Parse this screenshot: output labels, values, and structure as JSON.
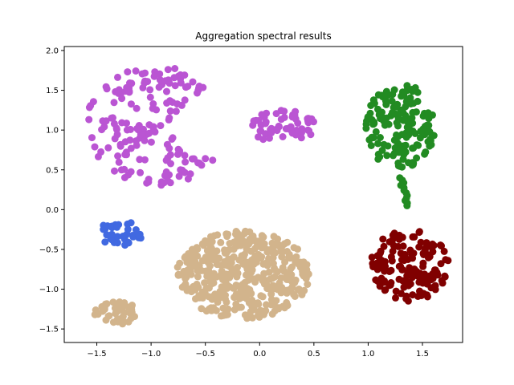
{
  "chart_data": {
    "type": "scatter",
    "title": "Aggregation spectral results",
    "xlabel": "",
    "ylabel": "",
    "xlim": [
      -1.8,
      1.87
    ],
    "ylim": [
      -1.67,
      2.05
    ],
    "xticks": [
      -1.5,
      -1.0,
      -0.5,
      0.0,
      0.5,
      1.0,
      1.5
    ],
    "yticks": [
      -1.5,
      -1.0,
      -0.5,
      0.0,
      0.5,
      1.0,
      1.5,
      2.0
    ],
    "xtick_labels": [
      "−1.5",
      "−1.0",
      "−0.5",
      "0.0",
      "0.5",
      "1.0",
      "1.5"
    ],
    "ytick_labels": [
      "−1.5",
      "−1.0",
      "−0.5",
      "0.0",
      "0.5",
      "1.0",
      "1.5",
      "2.0"
    ],
    "grid": false,
    "legend": "none",
    "clusters": [
      {
        "color": "#BA55D3",
        "shape": "crescent",
        "center": [
          -0.95,
          1.05
        ],
        "spread": [
          0.65,
          0.75
        ],
        "count": 170
      },
      {
        "color": "#BA55D3",
        "shape": "ellipse",
        "center": [
          0.2,
          1.05
        ],
        "spread": [
          0.32,
          0.2
        ],
        "count": 60
      },
      {
        "color": "#228B22",
        "shape": "ellipse",
        "center": [
          1.3,
          1.05
        ],
        "spread": [
          0.32,
          0.55
        ],
        "count": 160
      },
      {
        "color": "#228B22",
        "shape": "line",
        "from": [
          1.3,
          0.4
        ],
        "to": [
          1.37,
          0.05
        ],
        "count": 12
      },
      {
        "color": "#800000",
        "shape": "ellipse",
        "center": [
          1.38,
          -0.7
        ],
        "spread": [
          0.36,
          0.45
        ],
        "count": 150
      },
      {
        "color": "#4169E1",
        "shape": "ellipse",
        "center": [
          -1.28,
          -0.3
        ],
        "spread": [
          0.22,
          0.15
        ],
        "count": 35
      },
      {
        "color": "#D2B48C",
        "shape": "ellipse",
        "center": [
          -0.15,
          -0.82
        ],
        "spread": [
          0.62,
          0.55
        ],
        "count": 400
      },
      {
        "color": "#D2B48C",
        "shape": "ellipse",
        "center": [
          -1.32,
          -1.3
        ],
        "spread": [
          0.2,
          0.15
        ],
        "count": 45
      }
    ]
  }
}
